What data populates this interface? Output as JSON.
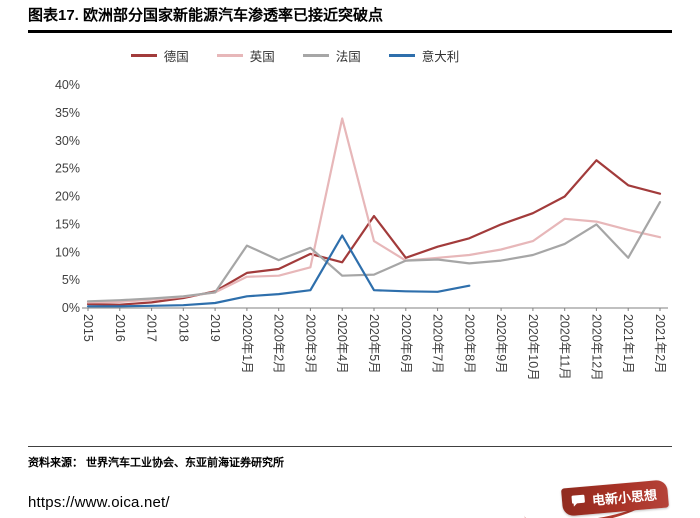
{
  "figure": {
    "title": "图表17. 欧洲部分国家新能源汽车渗透率已接近突破点",
    "source": "资料来源： 世界汽车工业协会、东亚前海证券研究所",
    "url": "https://www.oica.net/",
    "logo_text": "电新小思想",
    "logo_color": "#A93226"
  },
  "chart_data": {
    "type": "line",
    "title": "欧洲部分国家新能源汽车渗透率",
    "xlabel": "",
    "ylabel": "",
    "ylim": [
      0,
      40
    ],
    "ytick_step": 5,
    "yticks": [
      "0%",
      "5%",
      "10%",
      "15%",
      "20%",
      "25%",
      "30%",
      "35%",
      "40%"
    ],
    "grid": false,
    "legend_position": "top",
    "categories": [
      "2015",
      "2016",
      "2017",
      "2018",
      "2019",
      "2020年1月",
      "2020年2月",
      "2020年3月",
      "2020年4月",
      "2020年5月",
      "2020年6月",
      "2020年7月",
      "2020年8月",
      "2020年9月",
      "2020年10月",
      "2020年11月",
      "2020年12月",
      "2021年1月",
      "2021年2月"
    ],
    "series": [
      {
        "name": "德国",
        "color": "#A23B3B",
        "values": [
          0.7,
          0.6,
          1.0,
          1.8,
          3.0,
          6.3,
          7.0,
          9.7,
          8.2,
          16.5,
          9.0,
          11.0,
          12.5,
          15.0,
          17.0,
          20.0,
          26.5,
          22.0,
          20.5
        ]
      },
      {
        "name": "英国",
        "color": "#E7B7B9",
        "values": [
          1.0,
          1.1,
          1.5,
          2.0,
          2.8,
          5.6,
          5.8,
          7.3,
          34.0,
          12.0,
          8.5,
          9.0,
          9.5,
          10.5,
          12.0,
          16.0,
          15.5,
          14.0,
          12.7
        ]
      },
      {
        "name": "法国",
        "color": "#A6A6A6",
        "values": [
          1.2,
          1.4,
          1.7,
          2.1,
          2.8,
          11.2,
          8.6,
          10.8,
          5.8,
          6.0,
          8.5,
          8.7,
          8.0,
          8.5,
          9.5,
          11.5,
          15.0,
          9.0,
          19.0
        ]
      },
      {
        "name": "意大利",
        "color": "#2E6FAC",
        "values": [
          0.3,
          0.3,
          0.4,
          0.5,
          0.9,
          2.1,
          2.5,
          3.2,
          13.0,
          3.2,
          3.0,
          2.9,
          4.0,
          null,
          null,
          null,
          null,
          null,
          null
        ]
      }
    ]
  }
}
